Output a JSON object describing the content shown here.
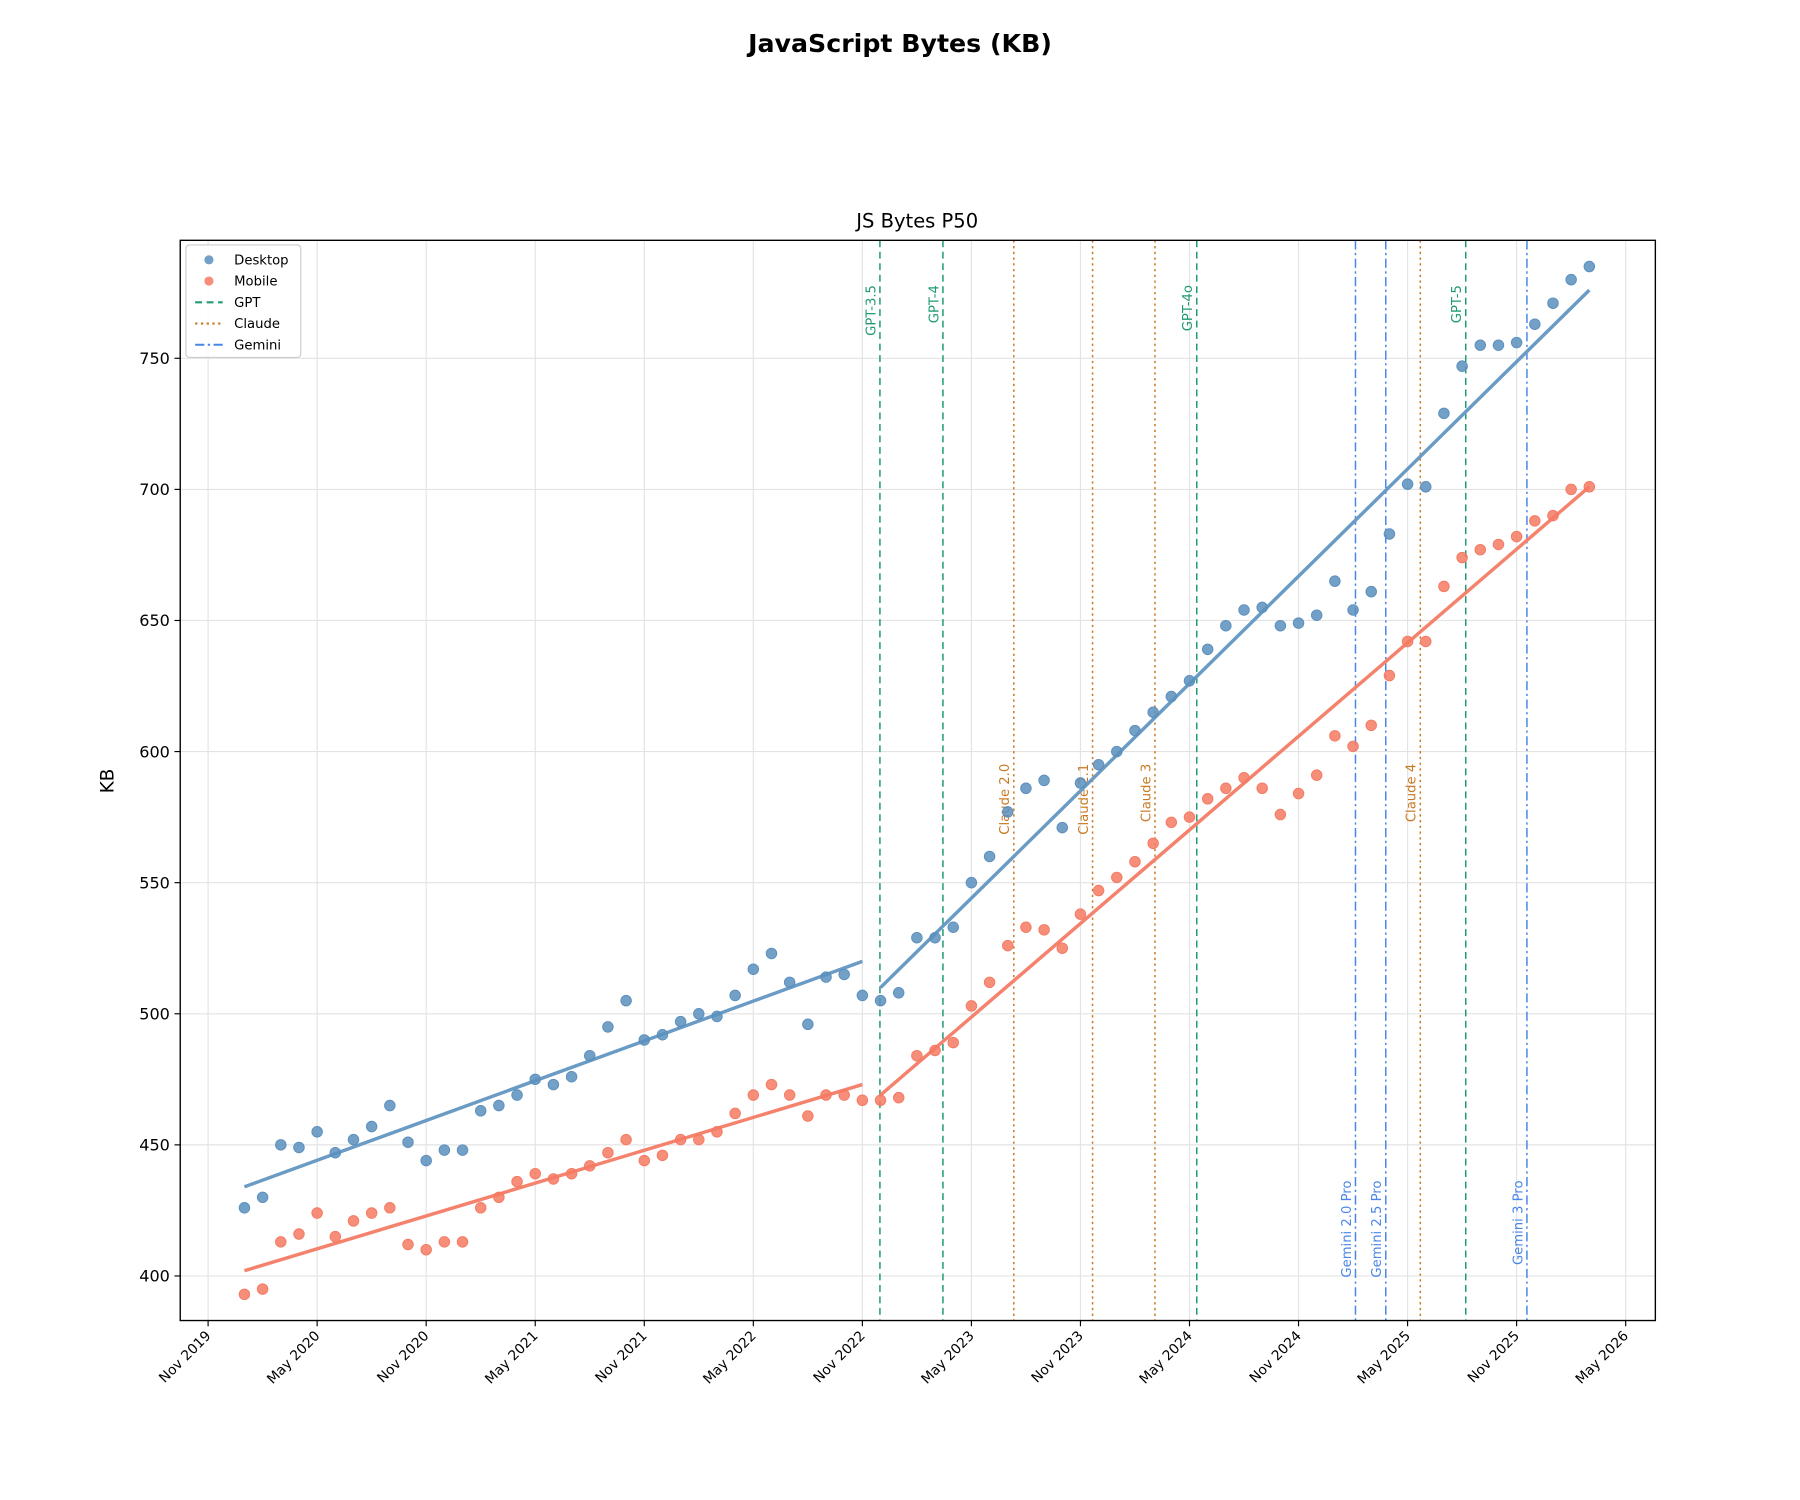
{
  "suptitle": "JavaScript Bytes (KB)",
  "chart_data": {
    "type": "scatter",
    "title": "JS Bytes P50",
    "xlabel": "",
    "ylabel": "KB",
    "grid": true,
    "legend_placement": "top-left",
    "xlim": [
      "2019-09-15",
      "2026-06-20"
    ],
    "ylim": [
      383,
      795
    ],
    "x_ticks": [
      "Nov 2019",
      "May 2020",
      "Nov 2020",
      "May 2021",
      "Nov 2021",
      "May 2022",
      "Nov 2022",
      "May 2023",
      "Nov 2023",
      "May 2024",
      "Nov 2024",
      "May 2025",
      "Nov 2025",
      "May 2026"
    ],
    "y_ticks": [
      400,
      450,
      500,
      550,
      600,
      650,
      700,
      750
    ],
    "x_start": "2020-01",
    "x_end": "2026-03",
    "series": [
      {
        "name": "Desktop",
        "color": "#5b8fbd",
        "values": [
          426,
          430,
          450,
          449,
          455,
          447,
          452,
          457,
          465,
          451,
          444,
          448,
          448,
          463,
          465,
          469,
          475,
          473,
          476,
          484,
          495,
          505,
          490,
          492,
          497,
          500,
          499,
          507,
          517,
          523,
          512,
          496,
          514,
          515,
          507,
          505,
          508,
          529,
          529,
          533,
          550,
          560,
          577,
          586,
          589,
          571,
          588,
          595,
          600,
          608,
          615,
          621,
          627,
          639,
          648,
          654,
          655,
          648,
          649,
          652,
          665,
          654,
          661,
          683,
          702,
          701,
          729,
          747,
          755,
          755,
          756,
          763,
          771,
          780,
          785
        ],
        "trend": [
          {
            "from": "2020-01",
            "to": "2022-11",
            "y0": 434,
            "y1": 520
          },
          {
            "from": "2022-12",
            "to": "2026-03",
            "y0": 510,
            "y1": 776
          }
        ]
      },
      {
        "name": "Mobile",
        "color": "#f47a63",
        "values": [
          393,
          395,
          413,
          416,
          424,
          415,
          421,
          424,
          426,
          412,
          410,
          413,
          413,
          426,
          430,
          436,
          439,
          437,
          439,
          442,
          447,
          452,
          444,
          446,
          452,
          452,
          455,
          462,
          469,
          473,
          469,
          461,
          469,
          469,
          467,
          467,
          468,
          484,
          486,
          489,
          503,
          512,
          526,
          533,
          532,
          525,
          538,
          547,
          552,
          558,
          565,
          573,
          575,
          582,
          586,
          590,
          586,
          576,
          584,
          591,
          606,
          602,
          610,
          629,
          642,
          642,
          663,
          674,
          677,
          679,
          682,
          688,
          690,
          700,
          701
        ],
        "trend": [
          {
            "from": "2020-01",
            "to": "2022-11",
            "y0": 402,
            "y1": 473
          },
          {
            "from": "2022-12",
            "to": "2026-03",
            "y0": 469,
            "y1": 701
          }
        ]
      }
    ],
    "model_families": [
      {
        "name": "GPT",
        "color": "#1f9a74",
        "dash": "6,4"
      },
      {
        "name": "Claude",
        "color": "#c87a24",
        "dash": "2,3"
      },
      {
        "name": "Gemini",
        "color": "#4a86e8",
        "dash": "8,3,2,3"
      }
    ],
    "annotations": [
      {
        "label": "GPT-3.5",
        "family": 0,
        "date": "2022-11-30"
      },
      {
        "label": "GPT-4",
        "family": 0,
        "date": "2023-03-14"
      },
      {
        "label": "Claude 2.0",
        "family": 1,
        "date": "2023-07-11"
      },
      {
        "label": "Claude 2.1",
        "family": 1,
        "date": "2023-11-21"
      },
      {
        "label": "Claude 3",
        "family": 1,
        "date": "2024-03-04"
      },
      {
        "label": "GPT-4o",
        "family": 0,
        "date": "2024-05-13"
      },
      {
        "label": "Gemini 2.0 Pro",
        "family": 2,
        "date": "2025-02-05"
      },
      {
        "label": "Gemini 2.5 Pro",
        "family": 2,
        "date": "2025-03-25"
      },
      {
        "label": "Claude 4",
        "family": 1,
        "date": "2025-05-22"
      },
      {
        "label": "GPT-5",
        "family": 0,
        "date": "2025-08-07"
      },
      {
        "label": "Gemini 3 Pro",
        "family": 2,
        "date": "2025-11-18"
      }
    ]
  }
}
